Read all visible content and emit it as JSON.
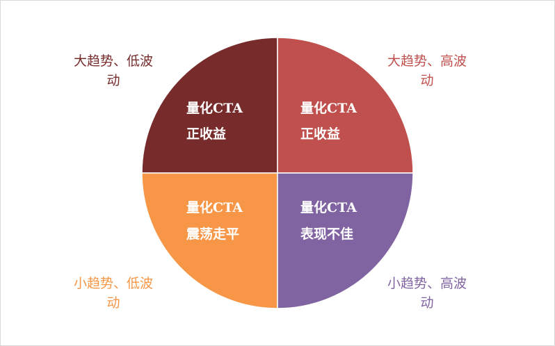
{
  "quadrants": [
    {
      "outer": [
        "大趋势、低波",
        "动"
      ],
      "inner": [
        "量化CTA",
        "正收益"
      ]
    },
    {
      "outer": [
        "大趋势、高波",
        "动"
      ],
      "inner": [
        "量化CTA",
        "正收益"
      ]
    },
    {
      "outer": [
        "小趋势、低波",
        "动"
      ],
      "inner": [
        "量化CTA",
        "震荡走平"
      ]
    },
    {
      "outer": [
        "小趋势、高波",
        "动"
      ],
      "inner": [
        "量化CTA",
        "表现不佳"
      ]
    }
  ]
}
